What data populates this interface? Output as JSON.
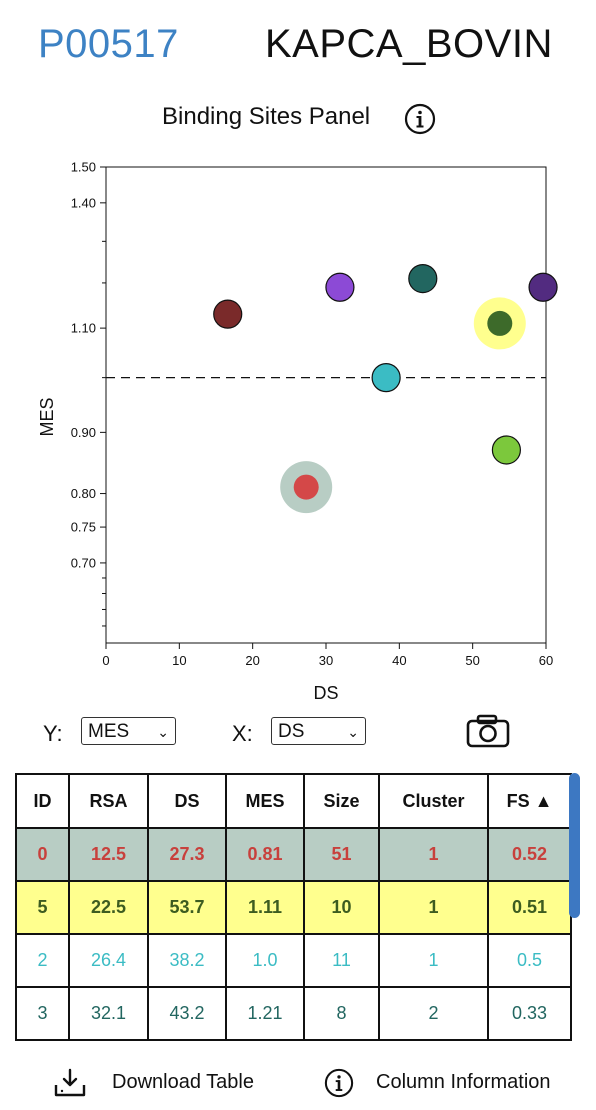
{
  "header": {
    "accession": "P00517",
    "entry_name": "KAPCA_BOVIN"
  },
  "panel": {
    "title": "Binding Sites Panel"
  },
  "chart_data": {
    "type": "scatter",
    "xlabel": "DS",
    "ylabel": "MES",
    "xlim": [
      0,
      60
    ],
    "ylim": [
      0.6,
      1.5
    ],
    "y_scale": "log",
    "x_ticks": [
      "0",
      "10",
      "20",
      "30",
      "40",
      "50",
      "60"
    ],
    "y_ticks": [
      {
        "v": 0.7,
        "label": "0.70"
      },
      {
        "v": 0.75,
        "label": "0.75"
      },
      {
        "v": 0.8,
        "label": "0.80"
      },
      {
        "v": 0.9,
        "label": "0.90"
      },
      {
        "v": 1.1,
        "label": "1.10"
      },
      {
        "v": 1.4,
        "label": "1.40"
      },
      {
        "v": 1.5,
        "label": "1.50"
      }
    ],
    "y_minor_ticks": [
      0.62,
      0.64,
      0.66,
      0.68,
      1.0,
      1.2,
      1.3
    ],
    "reference_line_y": 1.0,
    "points": [
      {
        "x": 16.6,
        "y": 1.13,
        "color": "#7a2a2a"
      },
      {
        "x": 27.3,
        "y": 0.81,
        "color": "#d44848",
        "halo": "#b8cdc4"
      },
      {
        "x": 31.9,
        "y": 1.19,
        "color": "#8c4ad6"
      },
      {
        "x": 38.2,
        "y": 1.0,
        "color": "#3bbcc4"
      },
      {
        "x": 43.2,
        "y": 1.21,
        "color": "#226660"
      },
      {
        "x": 53.7,
        "y": 1.11,
        "color": "#3d6a2a",
        "halo": "#ffff8e"
      },
      {
        "x": 54.6,
        "y": 0.87,
        "color": "#7cc83c"
      },
      {
        "x": 59.6,
        "y": 1.19,
        "color": "#522b80"
      }
    ]
  },
  "controls": {
    "y_label": "Y:",
    "y_value": "MES",
    "x_label": "X:",
    "x_value": "DS"
  },
  "table": {
    "headers": [
      "ID",
      "RSA",
      "DS",
      "MES",
      "Size",
      "Cluster",
      "FS ▲"
    ],
    "rows": [
      [
        "0",
        "12.5",
        "27.3",
        "0.81",
        "51",
        "1",
        "0.52"
      ],
      [
        "5",
        "22.5",
        "53.7",
        "1.11",
        "10",
        "1",
        "0.51"
      ],
      [
        "2",
        "26.4",
        "38.2",
        "1.0",
        "11",
        "1",
        "0.5"
      ],
      [
        "3",
        "32.1",
        "43.2",
        "1.21",
        "8",
        "2",
        "0.33"
      ]
    ]
  },
  "footer": {
    "download_label": "Download Table",
    "info_label": "Column Information"
  }
}
